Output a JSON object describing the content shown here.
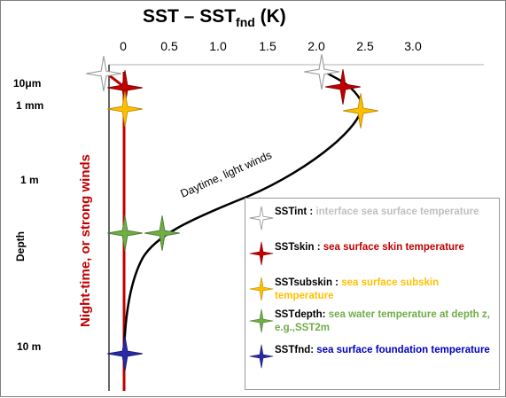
{
  "title": {
    "main": "SST – SST",
    "sub": "fnd",
    "unit": " (K)"
  },
  "x_axis": {
    "ticks": [
      "0",
      "0.5",
      "1.0",
      "1.5",
      "2.0",
      "2.5",
      "3.0"
    ]
  },
  "y_axis": {
    "label": "Depth",
    "ticks": [
      "10μm",
      "1 mm",
      "1 m",
      "10 m"
    ]
  },
  "annotations": {
    "day_curve": "Daytime, light winds",
    "night_line": "Night-time, or strong winds"
  },
  "colors": {
    "sstint": "#ffffff",
    "sstskin": "#c00000",
    "sstsubskin": "#ffc000",
    "sstdepth": "#70ad47",
    "sstfnd": "#2a2aa8",
    "night_line": "#c00000",
    "day_curve": "#000000",
    "desc_int": "#bfbfbf",
    "desc_skin": "#c00000",
    "desc_subskin": "#ffc000",
    "desc_depth": "#70ad47",
    "desc_fnd": "#0000c0"
  },
  "legend": {
    "items": [
      {
        "key": "SSTint :",
        "desc": "interface sea surface temperature",
        "icon": "white-star-icon"
      },
      {
        "key": "SSTskin :",
        "desc": "sea surface skin temperature",
        "icon": "red-star-icon"
      },
      {
        "key": "SSTsubskin :",
        "desc": "sea surface subskin temperature",
        "icon": "yellow-star-icon"
      },
      {
        "key": "SSTdepth:",
        "desc": "sea water temperature at depth z, e.g.,SST2m",
        "icon": "green-star-icon"
      },
      {
        "key": "SSTfnd:",
        "desc": "sea surface foundation temperature",
        "icon": "blue-star-icon"
      }
    ]
  }
}
